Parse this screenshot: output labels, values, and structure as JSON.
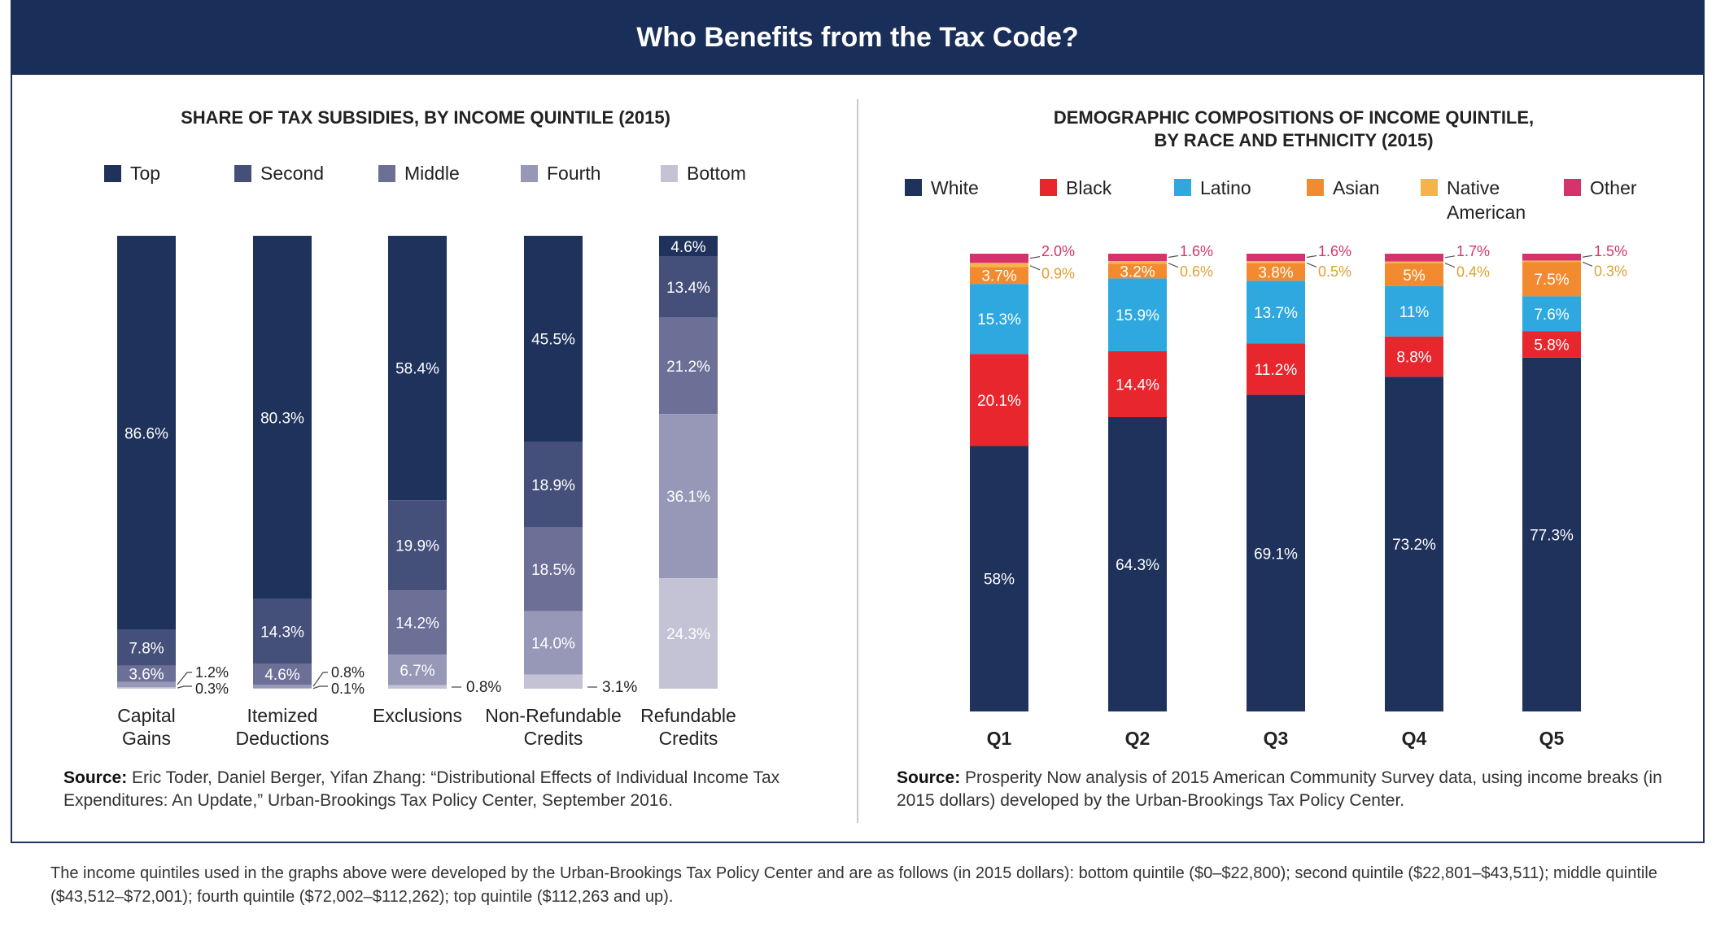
{
  "title": "Who Benefits from the Tax Code?",
  "colors": {
    "header": "#1a2e5a",
    "left": [
      "#1f325c",
      "#45507a",
      "#6c7097",
      "#9798b7",
      "#c3c3d5"
    ],
    "right": [
      "#1f325c",
      "#e8262e",
      "#2ea8df",
      "#f28b30",
      "#f6b34c",
      "#d6336c"
    ]
  },
  "chart_data": [
    {
      "type": "bar",
      "stacked": true,
      "title": "SHARE OF TAX SUBSIDIES, BY INCOME QUINTILE (2015)",
      "legend_placement": "top",
      "categories": [
        "Capital Gains",
        "Itemized Deductions",
        "Exclusions",
        "Non-Refundable Credits",
        "Refundable Credits"
      ],
      "series": [
        {
          "name": "Top",
          "values": [
            86.6,
            80.3,
            58.4,
            45.5,
            4.6
          ],
          "labels": [
            "86.6%",
            "80.3%",
            "58.4%",
            "45.5%",
            "4.6%"
          ]
        },
        {
          "name": "Second",
          "values": [
            7.8,
            14.3,
            19.9,
            18.9,
            13.4
          ],
          "labels": [
            "7.8%",
            "14.3%",
            "19.9%",
            "18.9%",
            "13.4%"
          ]
        },
        {
          "name": "Middle",
          "values": [
            3.6,
            4.6,
            14.2,
            18.5,
            21.2
          ],
          "labels": [
            "3.6%",
            "4.6%",
            "14.2%",
            "18.5%",
            "21.2%"
          ]
        },
        {
          "name": "Fourth",
          "values": [
            1.2,
            0.8,
            6.7,
            14.0,
            36.1
          ],
          "labels": [
            "1.2%",
            "0.8%",
            "6.7%",
            "14.0%",
            "36.1%"
          ]
        },
        {
          "name": "Bottom",
          "values": [
            0.3,
            0.1,
            0.8,
            3.1,
            24.3
          ],
          "labels": [
            "0.3%",
            "0.1%",
            "0.8%",
            "3.1%",
            "24.3%"
          ]
        }
      ],
      "source_label": "Source:",
      "source": "Eric Toder, Daniel Berger, Yifan Zhang: “Distributional Effects of Individual Income Tax Expenditures: An Update,” Urban-Brookings Tax Policy Center, September 2016."
    },
    {
      "type": "bar",
      "stacked": true,
      "title": "DEMOGRAPHIC COMPOSITIONS OF INCOME QUINTILE, BY RACE AND ETHNICITY (2015)",
      "legend_placement": "top",
      "categories": [
        "Q1",
        "Q2",
        "Q3",
        "Q4",
        "Q5"
      ],
      "series": [
        {
          "name": "White",
          "values": [
            58,
            64.3,
            69.1,
            73.2,
            77.3
          ],
          "labels": [
            "58%",
            "64.3%",
            "69.1%",
            "73.2%",
            "77.3%"
          ]
        },
        {
          "name": "Black",
          "values": [
            20.1,
            14.4,
            11.2,
            8.8,
            5.8
          ],
          "labels": [
            "20.1%",
            "14.4%",
            "11.2%",
            "8.8%",
            "5.8%"
          ]
        },
        {
          "name": "Latino",
          "values": [
            15.3,
            15.9,
            13.7,
            11,
            7.6
          ],
          "labels": [
            "15.3%",
            "15.9%",
            "13.7%",
            "11%",
            "7.6%"
          ]
        },
        {
          "name": "Asian",
          "values": [
            3.7,
            3.2,
            3.8,
            5,
            7.5
          ],
          "labels": [
            "3.7%",
            "3.2%",
            "3.8%",
            "5%",
            "7.5%"
          ]
        },
        {
          "name": "Native American",
          "values": [
            0.9,
            0.6,
            0.5,
            0.4,
            0.3
          ],
          "labels": [
            "0.9%",
            "0.6%",
            "0.5%",
            "0.4%",
            "0.3%"
          ]
        },
        {
          "name": "Other",
          "values": [
            2.0,
            1.6,
            1.6,
            1.7,
            1.5
          ],
          "labels": [
            "2.0%",
            "1.6%",
            "1.6%",
            "1.7%",
            "1.5%"
          ]
        }
      ],
      "source_label": "Source:",
      "source": "Prosperity Now analysis of 2015 American Community Survey data, using income breaks (in 2015 dollars) developed by the Urban-Brookings Tax Policy Center."
    }
  ],
  "footnote": "The income quintiles used in the graphs above were developed by the Urban-Brookings Tax Policy Center and are as follows (in 2015 dollars): bottom quintile ($0–$22,800); second quintile ($22,801–$43,511); middle quintile ($43,512–$72,001); fourth quintile ($72,002–$112,262); top quintile ($112,263 and up)."
}
